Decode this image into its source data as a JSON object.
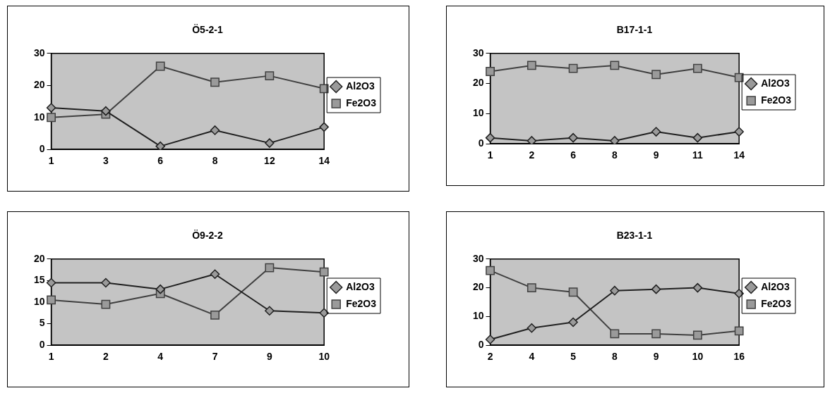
{
  "chart_data": [
    {
      "type": "line",
      "title": "Ö5-2-1",
      "categories": [
        "1",
        "3",
        "6",
        "8",
        "12",
        "14"
      ],
      "ylim": [
        0,
        30
      ],
      "yticks": [
        0,
        10,
        20,
        30
      ],
      "grid": false,
      "legend": "right",
      "series": [
        {
          "name": "Al2O3",
          "color": "#202020",
          "marker": "diamond",
          "values": [
            13,
            12,
            1,
            6,
            2,
            7
          ]
        },
        {
          "name": "Fe2O3",
          "color": "#404040",
          "marker": "square",
          "values": [
            10,
            11,
            26,
            21,
            23,
            19
          ]
        }
      ]
    },
    {
      "type": "line",
      "title": "B17-1-1",
      "categories": [
        "1",
        "2",
        "6",
        "8",
        "9",
        "11",
        "14"
      ],
      "ylim": [
        0,
        30
      ],
      "yticks": [
        0,
        10,
        20,
        30
      ],
      "grid": false,
      "legend": "right",
      "series": [
        {
          "name": "Al2O3",
          "color": "#202020",
          "marker": "diamond",
          "values": [
            2,
            1,
            2,
            1,
            4,
            2,
            4
          ]
        },
        {
          "name": "Fe2O3",
          "color": "#404040",
          "marker": "square",
          "values": [
            24,
            26,
            25,
            26,
            23,
            25,
            22
          ]
        }
      ]
    },
    {
      "type": "line",
      "title": "Ö9-2-2",
      "categories": [
        "1",
        "2",
        "4",
        "7",
        "9",
        "10"
      ],
      "ylim": [
        0,
        20
      ],
      "yticks": [
        0,
        5,
        10,
        15,
        20
      ],
      "grid": false,
      "legend": "right",
      "series": [
        {
          "name": "Al2O3",
          "color": "#202020",
          "marker": "diamond",
          "values": [
            14.5,
            14.5,
            13,
            16.5,
            8,
            7.5
          ]
        },
        {
          "name": "Fe2O3",
          "color": "#404040",
          "marker": "square",
          "values": [
            10.5,
            9.5,
            12,
            7,
            18,
            17
          ]
        }
      ]
    },
    {
      "type": "line",
      "title": "B23-1-1",
      "categories": [
        "2",
        "4",
        "5",
        "8",
        "9",
        "10",
        "16"
      ],
      "ylim": [
        0,
        30
      ],
      "yticks": [
        0,
        10,
        20,
        30
      ],
      "grid": false,
      "legend": "right",
      "series": [
        {
          "name": "Al2O3",
          "color": "#202020",
          "marker": "diamond",
          "values": [
            2,
            6,
            8,
            19,
            19.5,
            20,
            18
          ]
        },
        {
          "name": "Fe2O3",
          "color": "#404040",
          "marker": "square",
          "values": [
            26,
            20,
            18.5,
            4,
            4,
            3.5,
            5
          ]
        }
      ]
    }
  ]
}
